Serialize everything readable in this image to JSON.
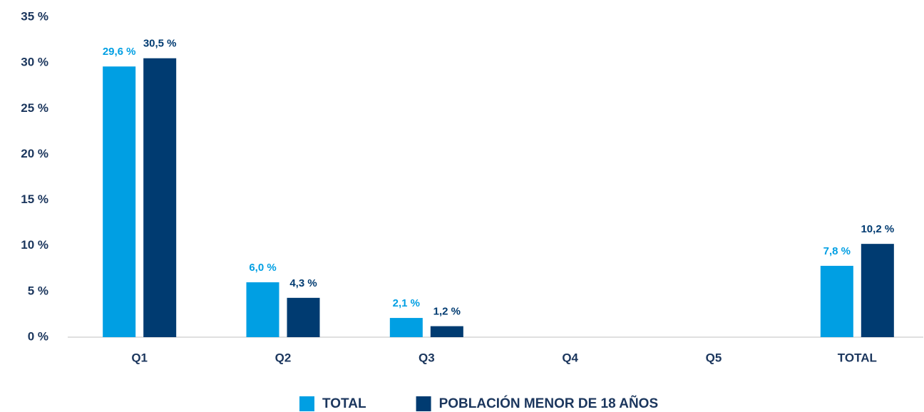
{
  "chart_data": {
    "type": "bar",
    "categories": [
      "Q1",
      "Q2",
      "Q3",
      "Q4",
      "Q5",
      "TOTAL"
    ],
    "series": [
      {
        "name": "TOTAL",
        "color": "#009fe3",
        "values": [
          29.6,
          6.0,
          2.1,
          null,
          null,
          7.8
        ],
        "value_labels": [
          "29,6 %",
          "6,0 %",
          "2,1 %",
          null,
          null,
          "7,8 %"
        ]
      },
      {
        "name": "POBLACIÓN MENOR DE 18 AÑOS",
        "color": "#003b71",
        "values": [
          30.5,
          4.3,
          1.2,
          null,
          null,
          10.2
        ],
        "value_labels": [
          "30,5 %",
          "4,3 %",
          "1,2 %",
          null,
          null,
          "10,2 %"
        ]
      }
    ],
    "ylim": [
      0,
      35
    ],
    "yticks": [
      {
        "value": 0,
        "label": "0 %"
      },
      {
        "value": 5,
        "label": "5 %"
      },
      {
        "value": 10,
        "label": "10 %"
      },
      {
        "value": 15,
        "label": "15 %"
      },
      {
        "value": 20,
        "label": "20 %"
      },
      {
        "value": 25,
        "label": "25 %"
      },
      {
        "value": 30,
        "label": "30 %"
      },
      {
        "value": 35,
        "label": "35 %"
      }
    ],
    "grid": false,
    "legend": "bottom"
  }
}
